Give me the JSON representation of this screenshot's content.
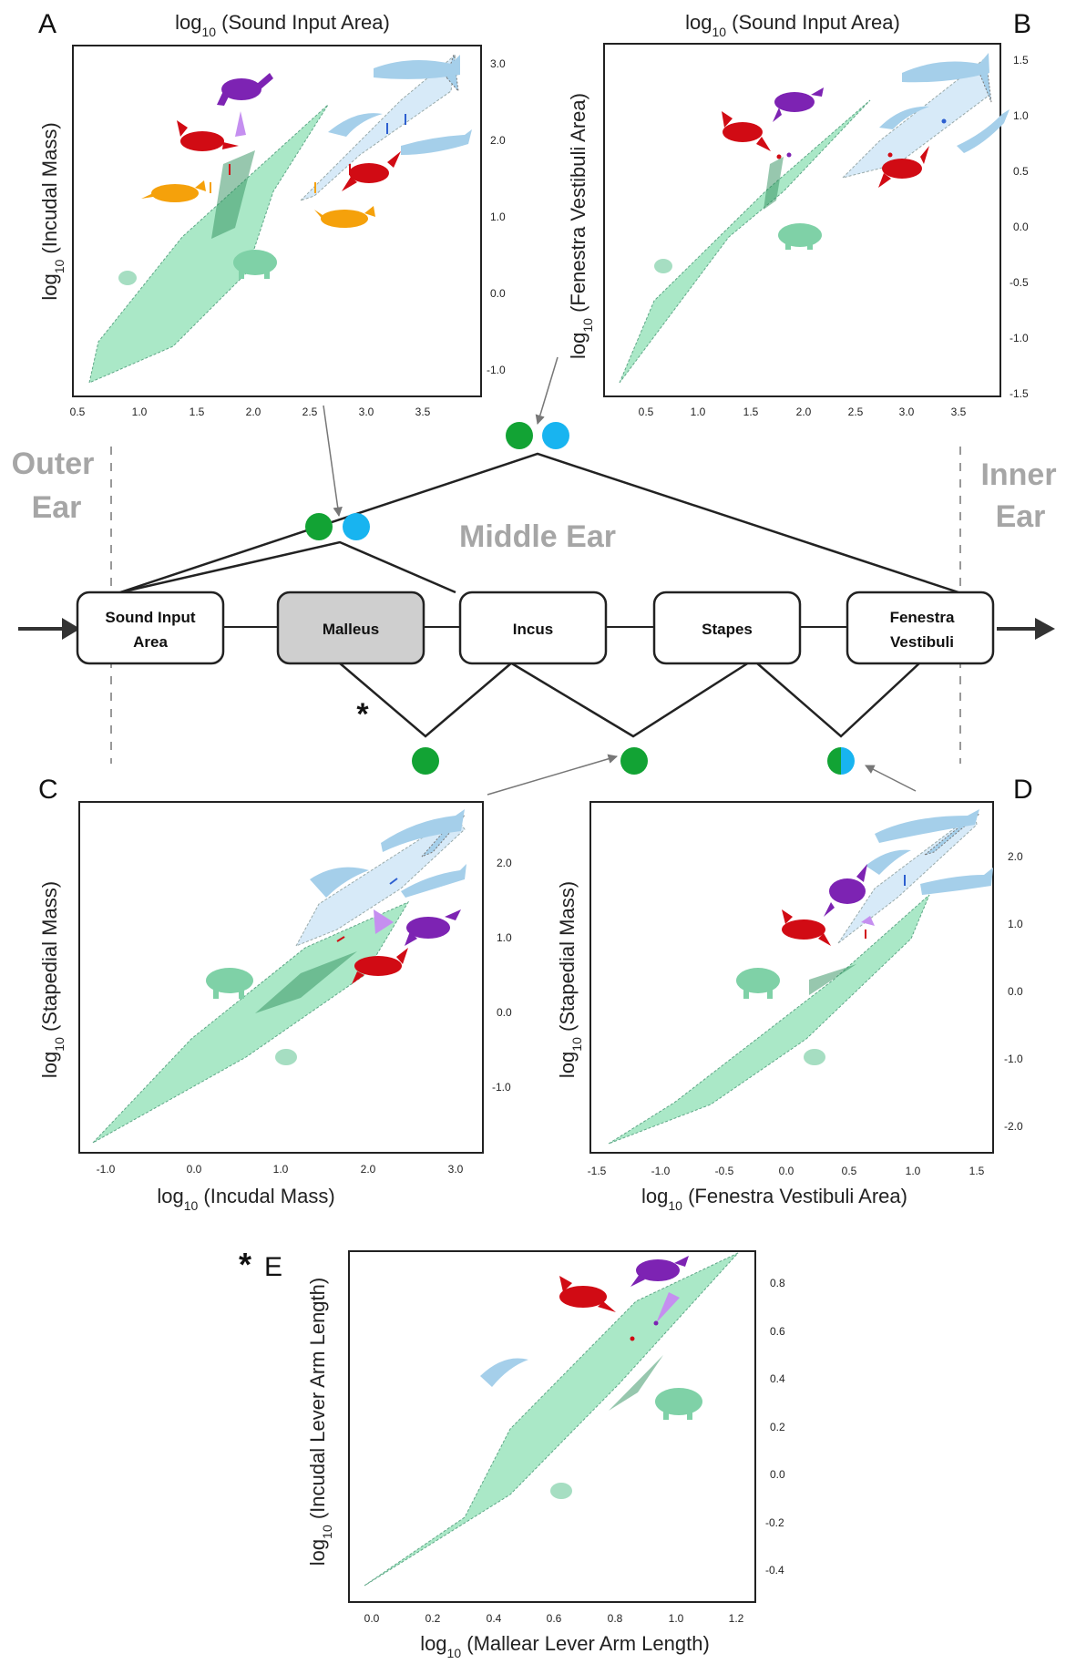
{
  "colors": {
    "hull_green": "#8ee0b4",
    "hull_dark": "#2f8f5e",
    "hull_blue": "#d3e8f7",
    "whale_blue": "#a5cfea",
    "purple": "#7d23b3",
    "red": "#d10b14",
    "orange": "#f5a10b",
    "boar_green": "#7fd1a7",
    "dot_green": "#12a334",
    "dot_blue": "#18b4f0",
    "node_highlight": "#cfcfcf",
    "ear_label_grey": "#a6a6a6"
  },
  "regions": {
    "outer": [
      "Outer",
      "Ear"
    ],
    "middle": "Middle Ear",
    "inner": [
      "Inner",
      "Ear"
    ]
  },
  "nodes": [
    {
      "id": "sound",
      "lines": [
        "Sound Input",
        "Area"
      ],
      "highlight": false
    },
    {
      "id": "malleus",
      "lines": [
        "Malleus"
      ],
      "highlight": true
    },
    {
      "id": "incus",
      "lines": [
        "Incus"
      ],
      "highlight": false
    },
    {
      "id": "stapes",
      "lines": [
        "Stapes"
      ],
      "highlight": false
    },
    {
      "id": "fenestra",
      "lines": [
        "Fenestra",
        "Vestibuli"
      ],
      "highlight": false
    }
  ],
  "asterisk": "*",
  "panels": {
    "A": {
      "letter": "A",
      "xlabel": {
        "base": "log",
        "sub": "10",
        "rest": " (Sound Input Area)"
      },
      "ylabel": {
        "base": "log",
        "sub": "10",
        "rest": " (Incudal Mass)"
      },
      "xticks": [
        "0.5",
        "1.0",
        "1.5",
        "2.0",
        "2.5",
        "3.0",
        "3.5"
      ],
      "yticks": [
        "3.0",
        "2.0",
        "1.0",
        "0.0",
        "-1.0"
      ]
    },
    "B": {
      "letter": "B",
      "xlabel": {
        "base": "log",
        "sub": "10",
        "rest": " (Sound Input Area)"
      },
      "ylabel": {
        "base": "log",
        "sub": "10",
        "rest": " (Fenestra Vestibuli Area)"
      },
      "xticks": [
        "0.5",
        "1.0",
        "1.5",
        "2.0",
        "2.5",
        "3.0",
        "3.5"
      ],
      "yticks": [
        "1.5",
        "1.0",
        "0.5",
        "0.0",
        "-0.5",
        "-1.0",
        "-1.5"
      ]
    },
    "C": {
      "letter": "C",
      "xlabel": {
        "base": "log",
        "sub": "10",
        "rest": " (Incudal Mass)"
      },
      "ylabel": {
        "base": "log",
        "sub": "10",
        "rest": " (Stapedial Mass)"
      },
      "xticks": [
        "-1.0",
        "0.0",
        "1.0",
        "2.0",
        "3.0"
      ],
      "yticks": [
        "2.0",
        "1.0",
        "0.0",
        "-1.0"
      ]
    },
    "D": {
      "letter": "D",
      "xlabel": {
        "base": "log",
        "sub": "10",
        "rest": " (Fenestra Vestibuli Area)"
      },
      "ylabel": {
        "base": "log",
        "sub": "10",
        "rest": " (Stapedial Mass)"
      },
      "xticks": [
        "-1.5",
        "-1.0",
        "-0.5",
        "0.0",
        "0.5",
        "1.0",
        "1.5"
      ],
      "yticks": [
        "2.0",
        "1.0",
        "0.0",
        "-1.0",
        "-2.0"
      ]
    },
    "E": {
      "letter": "E",
      "asterisk": "*",
      "xlabel": {
        "base": "log",
        "sub": "10",
        "rest": " (Mallear Lever Arm Length)"
      },
      "ylabel": {
        "base": "log",
        "sub": "10",
        "rest": " (Incudal Lever Arm Length)"
      },
      "xticks": [
        "0.0",
        "0.2",
        "0.4",
        "0.6",
        "0.8",
        "1.0",
        "1.2"
      ],
      "yticks": [
        "0.8",
        "0.6",
        "0.4",
        "0.2",
        "0.0",
        "-0.2",
        "-0.4"
      ]
    }
  }
}
